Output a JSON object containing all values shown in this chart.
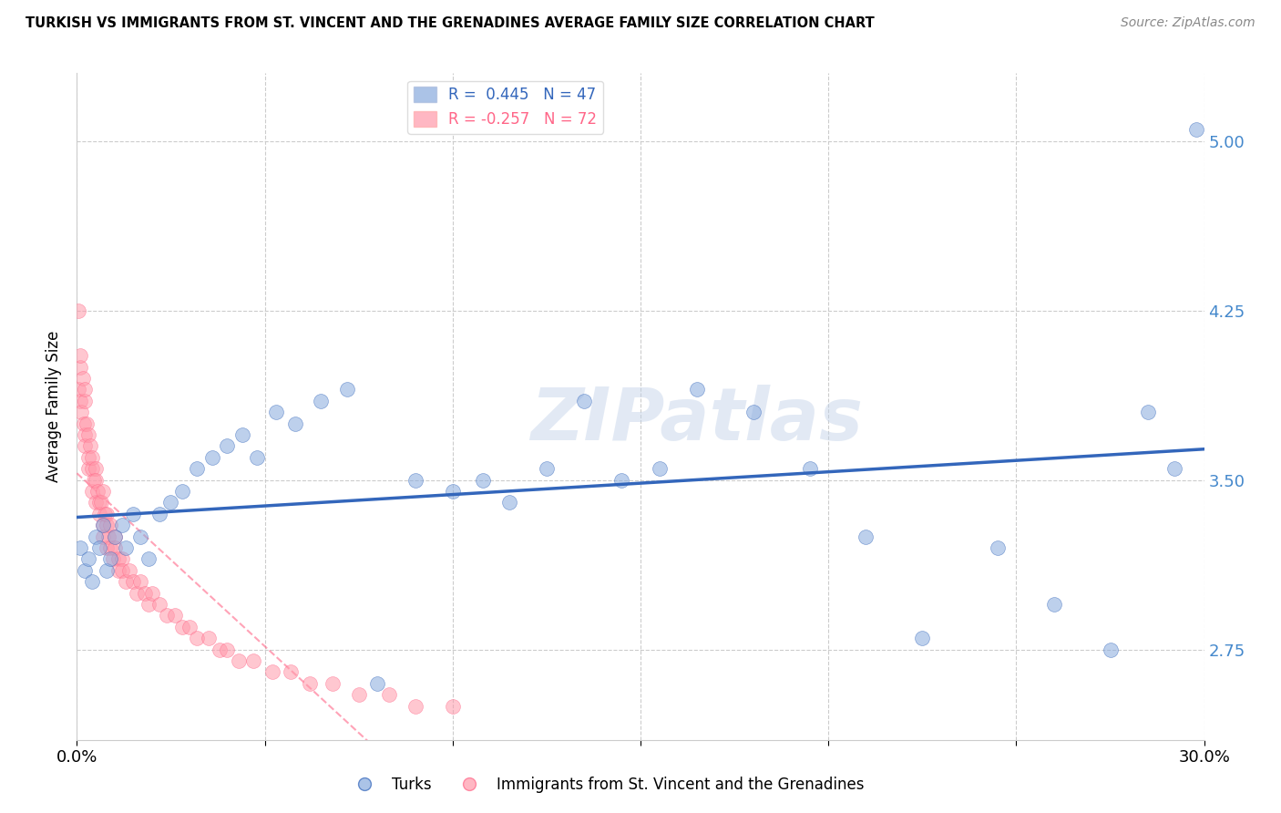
{
  "title": "TURKISH VS IMMIGRANTS FROM ST. VINCENT AND THE GRENADINES AVERAGE FAMILY SIZE CORRELATION CHART",
  "source": "Source: ZipAtlas.com",
  "ylabel": "Average Family Size",
  "yticks": [
    2.75,
    3.5,
    4.25,
    5.0
  ],
  "xlim": [
    0.0,
    0.3
  ],
  "ylim": [
    2.35,
    5.3
  ],
  "watermark": "ZIPatlas",
  "blue_R": 0.445,
  "blue_N": 47,
  "pink_R": -0.257,
  "pink_N": 72,
  "blue_color": "#88AADD",
  "pink_color": "#FF99AA",
  "blue_line_color": "#3366BB",
  "pink_line_color": "#FF6688",
  "tick_color": "#4488CC",
  "blue_scatter_x": [
    0.001,
    0.002,
    0.003,
    0.004,
    0.005,
    0.006,
    0.007,
    0.008,
    0.009,
    0.01,
    0.012,
    0.013,
    0.015,
    0.017,
    0.019,
    0.022,
    0.025,
    0.028,
    0.032,
    0.036,
    0.04,
    0.044,
    0.048,
    0.053,
    0.058,
    0.065,
    0.072,
    0.08,
    0.09,
    0.1,
    0.108,
    0.115,
    0.125,
    0.135,
    0.145,
    0.155,
    0.165,
    0.18,
    0.195,
    0.21,
    0.225,
    0.245,
    0.26,
    0.275,
    0.285,
    0.292,
    0.298
  ],
  "blue_scatter_y": [
    3.2,
    3.1,
    3.15,
    3.05,
    3.25,
    3.2,
    3.3,
    3.1,
    3.15,
    3.25,
    3.3,
    3.2,
    3.35,
    3.25,
    3.15,
    3.35,
    3.4,
    3.45,
    3.55,
    3.6,
    3.65,
    3.7,
    3.6,
    3.8,
    3.75,
    3.85,
    3.9,
    2.6,
    3.5,
    3.45,
    3.5,
    3.4,
    3.55,
    3.85,
    3.5,
    3.55,
    3.9,
    3.8,
    3.55,
    3.25,
    2.8,
    3.2,
    2.95,
    2.75,
    3.8,
    3.55,
    5.05
  ],
  "pink_scatter_x": [
    0.0003,
    0.0005,
    0.0008,
    0.001,
    0.001,
    0.0012,
    0.0015,
    0.0018,
    0.002,
    0.002,
    0.002,
    0.0022,
    0.0025,
    0.003,
    0.003,
    0.003,
    0.0035,
    0.004,
    0.004,
    0.004,
    0.0045,
    0.005,
    0.005,
    0.005,
    0.0055,
    0.006,
    0.006,
    0.0065,
    0.007,
    0.007,
    0.007,
    0.0075,
    0.008,
    0.008,
    0.008,
    0.0085,
    0.009,
    0.009,
    0.0095,
    0.01,
    0.01,
    0.011,
    0.011,
    0.012,
    0.012,
    0.013,
    0.014,
    0.015,
    0.016,
    0.017,
    0.018,
    0.019,
    0.02,
    0.022,
    0.024,
    0.026,
    0.028,
    0.03,
    0.032,
    0.035,
    0.038,
    0.04,
    0.043,
    0.047,
    0.052,
    0.057,
    0.062,
    0.068,
    0.075,
    0.083,
    0.09,
    0.1
  ],
  "pink_scatter_y": [
    4.25,
    3.9,
    4.0,
    3.85,
    4.05,
    3.8,
    3.95,
    3.75,
    3.85,
    3.7,
    3.9,
    3.65,
    3.75,
    3.7,
    3.55,
    3.6,
    3.65,
    3.55,
    3.45,
    3.6,
    3.5,
    3.55,
    3.4,
    3.5,
    3.45,
    3.4,
    3.35,
    3.4,
    3.3,
    3.45,
    3.25,
    3.35,
    3.3,
    3.2,
    3.35,
    3.25,
    3.2,
    3.3,
    3.15,
    3.25,
    3.2,
    3.15,
    3.1,
    3.15,
    3.1,
    3.05,
    3.1,
    3.05,
    3.0,
    3.05,
    3.0,
    2.95,
    3.0,
    2.95,
    2.9,
    2.9,
    2.85,
    2.85,
    2.8,
    2.8,
    2.75,
    2.75,
    2.7,
    2.7,
    2.65,
    2.65,
    2.6,
    2.6,
    2.55,
    2.55,
    2.5,
    2.5
  ]
}
